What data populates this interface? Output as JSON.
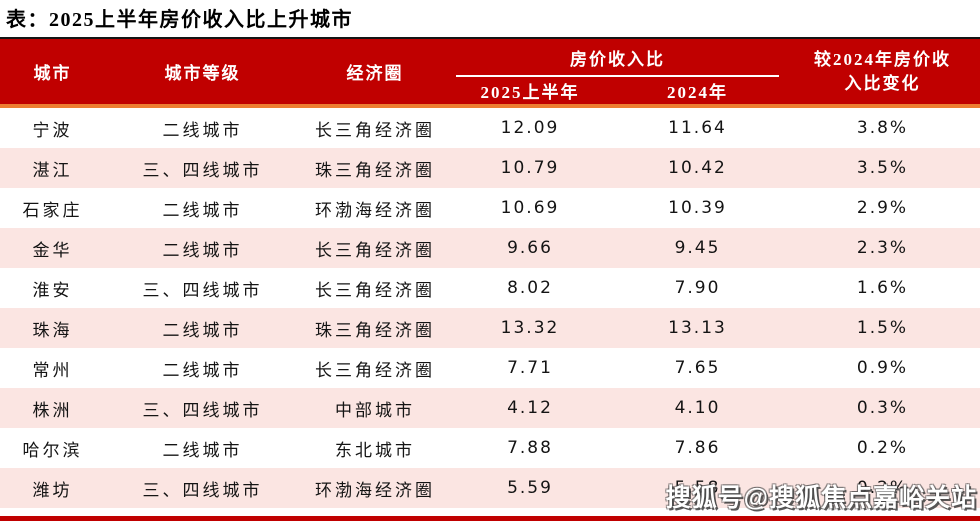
{
  "page_title": "表：2025上半年房价收入比上升城市",
  "watermark": "搜狐号@搜狐焦点嘉峪关站",
  "colors": {
    "header_bg": "#C00000",
    "header_text": "#FFFFFF",
    "accent_line": "#ED7D31",
    "alt_row_bg": "#FBE5E2",
    "top_border": "#141414",
    "bottom_bar": "#C00000"
  },
  "chart_data": {
    "type": "table",
    "title": "表：2025上半年房价收入比上升城市",
    "group_header": "房价收入比",
    "columns": [
      "城市",
      "城市等级",
      "经济圈",
      "2025上半年",
      "2024年",
      "较2024年房价收入比变化"
    ],
    "rows": [
      [
        "宁波",
        "二线城市",
        "长三角经济圈",
        "12.09",
        "11.64",
        "3.8%"
      ],
      [
        "湛江",
        "三、四线城市",
        "珠三角经济圈",
        "10.79",
        "10.42",
        "3.5%"
      ],
      [
        "石家庄",
        "二线城市",
        "环渤海经济圈",
        "10.69",
        "10.39",
        "2.9%"
      ],
      [
        "金华",
        "二线城市",
        "长三角经济圈",
        "9.66",
        "9.45",
        "2.3%"
      ],
      [
        "淮安",
        "三、四线城市",
        "长三角经济圈",
        "8.02",
        "7.90",
        "1.6%"
      ],
      [
        "珠海",
        "二线城市",
        "珠三角经济圈",
        "13.32",
        "13.13",
        "1.5%"
      ],
      [
        "常州",
        "二线城市",
        "长三角经济圈",
        "7.71",
        "7.65",
        "0.9%"
      ],
      [
        "株洲",
        "三、四线城市",
        "中部城市",
        "4.12",
        "4.10",
        "0.3%"
      ],
      [
        "哈尔滨",
        "二线城市",
        "东北城市",
        "7.88",
        "7.86",
        "0.2%"
      ],
      [
        "潍坊",
        "三、四线城市",
        "环渤海经济圈",
        "5.59",
        "5.58",
        "0.2%"
      ]
    ]
  }
}
